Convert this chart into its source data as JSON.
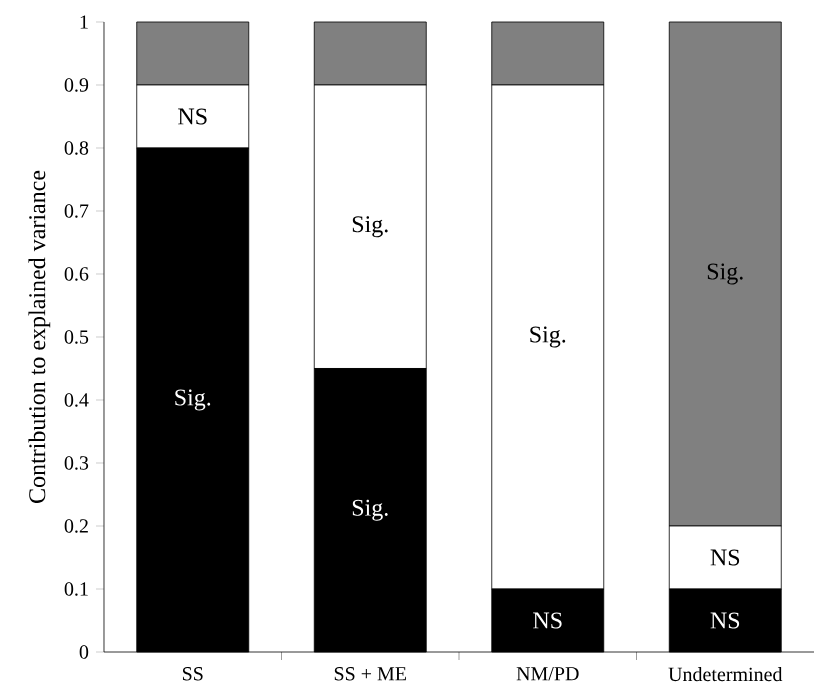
{
  "chart_data": {
    "type": "bar",
    "stacked": true,
    "ylabel": "Contribution to explained variance",
    "categories": [
      "SS",
      "SS + ME",
      "NM/PD",
      "Undetermined"
    ],
    "series": [
      {
        "color": "#000000",
        "values": [
          0.8,
          0.45,
          0.1,
          0.1
        ],
        "value_labels": [
          "Sig.",
          "Sig.",
          "NS",
          "NS"
        ]
      },
      {
        "color": "#ffffff",
        "values": [
          0.1,
          0.45,
          0.8,
          0.1
        ],
        "value_labels": [
          "NS",
          "Sig.",
          "Sig.",
          "NS"
        ]
      },
      {
        "color": "#808080",
        "values": [
          0.1,
          0.1,
          0.1,
          0.8
        ],
        "value_labels": [
          null,
          null,
          null,
          "Sig."
        ]
      }
    ],
    "ylim": [
      0,
      1
    ],
    "yticks": [
      0,
      0.1,
      0.2,
      0.3,
      0.4,
      0.5,
      0.6,
      0.7,
      0.8,
      0.9,
      1
    ]
  }
}
